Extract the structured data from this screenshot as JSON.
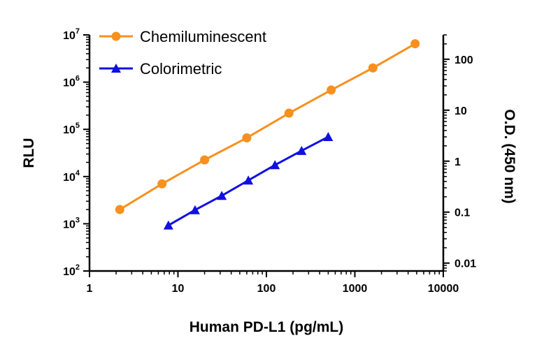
{
  "chart_data": {
    "type": "line",
    "xlabel": "Human PD-L1 (pg/mL)",
    "ylabel": "RLU",
    "y2label": "O.D. (450 nm)",
    "x_scale": "log",
    "y_scale": "log",
    "y2_scale": "log",
    "xlim": [
      1,
      10000
    ],
    "ylim": [
      100,
      10000000
    ],
    "y2lim": [
      0.007,
      300
    ],
    "x_ticks": [
      1,
      10,
      100,
      1000,
      10000
    ],
    "x_tick_labels": [
      "1",
      "10",
      "100",
      "1000",
      "10000"
    ],
    "y_ticks": [
      100,
      1000,
      10000,
      100000,
      1000000,
      10000000
    ],
    "y_tick_labels": [
      {
        "base": "10",
        "exp": "2"
      },
      {
        "base": "10",
        "exp": "3"
      },
      {
        "base": "10",
        "exp": "4"
      },
      {
        "base": "10",
        "exp": "5"
      },
      {
        "base": "10",
        "exp": "6"
      },
      {
        "base": "10",
        "exp": "7"
      }
    ],
    "y2_ticks": [
      0.01,
      0.1,
      1,
      10,
      100
    ],
    "y2_tick_labels": [
      "0.01",
      "0.1",
      "1",
      "10",
      "100"
    ],
    "grid": false,
    "legend_position": "top-left",
    "series": [
      {
        "name": "Chemiluminescent",
        "axis": "left",
        "color": "#f7901e",
        "marker": "circle",
        "x": [
          2.2,
          6.6,
          20,
          60,
          180,
          540,
          1600,
          4800
        ],
        "y": [
          2000,
          7000,
          22500,
          66000,
          220000,
          680000,
          2000000,
          6500000
        ]
      },
      {
        "name": "Colorimetric",
        "axis": "right",
        "color": "#1010e0",
        "marker": "triangle",
        "x": [
          7.8,
          15.6,
          31.3,
          62.5,
          125,
          250,
          500
        ],
        "y": [
          0.055,
          0.11,
          0.21,
          0.42,
          0.84,
          1.6,
          3.0
        ]
      }
    ]
  }
}
